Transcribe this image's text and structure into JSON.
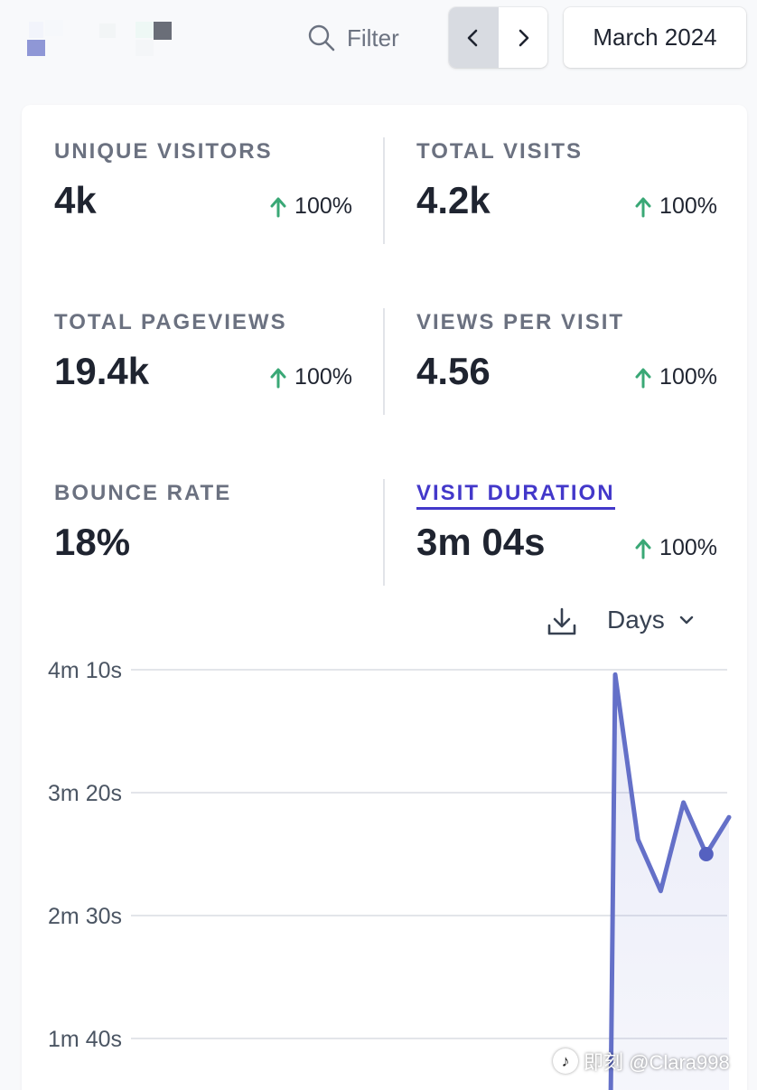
{
  "toolbar": {
    "filter_label": "Filter",
    "date_label": "March 2024"
  },
  "stats": [
    {
      "label": "UNIQUE VISITORS",
      "value": "4k",
      "change": "100%"
    },
    {
      "label": "TOTAL VISITS",
      "value": "4.2k",
      "change": "100%"
    },
    {
      "label": "TOTAL PAGEVIEWS",
      "value": "19.4k",
      "change": "100%"
    },
    {
      "label": "VIEWS PER VISIT",
      "value": "4.56",
      "change": "100%"
    },
    {
      "label": "BOUNCE RATE",
      "value": "18%"
    },
    {
      "label": "VISIT DURATION",
      "value": "3m 04s",
      "change": "100%"
    }
  ],
  "chart_controls": {
    "interval_label": "Days"
  },
  "colors": {
    "accent": "#4338ca",
    "line": "#6470c8",
    "positive": "#3aa876"
  },
  "chart_data": {
    "type": "area",
    "y_unit": "seconds",
    "y_tick_labels": [
      "4m 10s",
      "3m 20s",
      "2m 30s",
      "1m 40s"
    ],
    "y_tick_values": [
      250,
      200,
      150,
      100
    ],
    "x_visible_range": [
      0,
      31
    ],
    "series": [
      {
        "values_visible": [
          [
            0,
            0
          ],
          [
            1,
            0
          ],
          [
            2,
            0
          ],
          [
            3,
            0
          ],
          [
            4,
            0
          ],
          [
            5,
            0
          ],
          [
            6,
            0
          ],
          [
            7,
            0
          ],
          [
            8,
            0
          ],
          [
            9,
            0
          ],
          [
            10,
            0
          ],
          [
            11,
            0
          ],
          [
            12,
            0
          ],
          [
            13,
            0
          ],
          [
            14,
            0
          ],
          [
            15,
            0
          ],
          [
            16,
            0
          ],
          [
            17,
            0
          ],
          [
            18,
            0
          ],
          [
            19,
            0
          ],
          [
            20,
            0
          ],
          [
            21,
            0
          ],
          [
            22,
            0
          ],
          [
            23,
            0
          ],
          [
            24,
            0
          ],
          [
            25,
            0
          ],
          [
            26,
            0
          ],
          [
            27,
            248
          ],
          [
            28,
            181
          ],
          [
            29,
            160
          ],
          [
            30,
            196
          ],
          [
            31,
            175
          ],
          [
            32,
            190
          ]
        ],
        "highlighted_index": 31
      }
    ]
  },
  "watermark": {
    "text": "即刻 @Clara998"
  }
}
